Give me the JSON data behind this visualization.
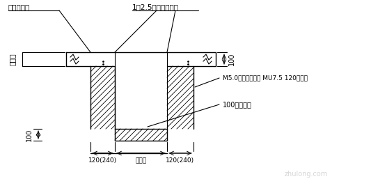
{
  "bg_color": "#ffffff",
  "line_color": "#000000",
  "fig_width": 5.33,
  "fig_height": 2.8,
  "dpi": 100,
  "labels": {
    "title_left": "地梁或承台",
    "title_right": "1：2.5水泥砂浆粉刷",
    "left_side": "地梁深",
    "dim_100_left": "100",
    "dim_100_right": "100",
    "label_mortar": "M5.0水泥砂浆砌筑 MU7.5 120厚砖墙",
    "label_gravel": "100厚砼垫层",
    "dim_bottom_left": "120(240)",
    "dim_bottom_mid": "地梁宽",
    "dim_bottom_right": "120(240)"
  }
}
